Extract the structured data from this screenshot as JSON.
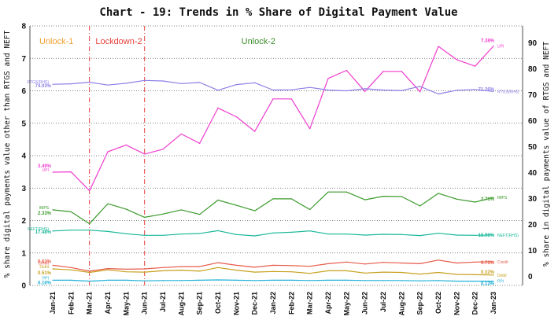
{
  "chart_data": {
    "type": "line",
    "title": "Chart - 19: Trends in % Share of Digital Payment Value",
    "ylabel_left": "% share digital payments value other than RTGS and NEFT",
    "ylabel_right": "% share in digital payments value of RTGS and NEFT",
    "categories": [
      "Jan-21",
      "Feb-21",
      "Mar-21",
      "Apr-21",
      "May-21",
      "Jun-21",
      "Jul-21",
      "Aug-21",
      "Sep-21",
      "Oct-21",
      "Nov-21",
      "Dec-21",
      "Jan-22",
      "Feb-22",
      "Mar-22",
      "Apr-22",
      "May-22",
      "Jun-22",
      "Jul-22",
      "Aug-22",
      "Sep-22",
      "Oct-22",
      "Nov-22",
      "Dec-22",
      "Jan-23"
    ],
    "ylim_left": [
      0,
      8
    ],
    "yticks_left": [
      "0",
      "1",
      "2",
      "3",
      "4",
      "5",
      "6",
      "7",
      "8"
    ],
    "ylim_right": [
      -3.5,
      96.5
    ],
    "yticks_right": [
      "0",
      "10",
      "20",
      "30",
      "40",
      "50",
      "60",
      "70",
      "80",
      "90"
    ],
    "phases": [
      {
        "label": "Unlock-1",
        "color": "#f0a030"
      },
      {
        "label": "Lockdown-2",
        "color": "#e8403c"
      },
      {
        "label": "Unlock-2",
        "color": "#3a8a2a"
      }
    ],
    "phase_boundaries": [
      "Mar-21",
      "Jun-21"
    ],
    "series": [
      {
        "name": "UPI",
        "axis": "left",
        "color": "#f03ccf",
        "values": [
          3.49,
          3.5,
          2.92,
          4.12,
          4.33,
          4.05,
          4.2,
          4.67,
          4.38,
          5.47,
          5.2,
          4.75,
          5.75,
          5.75,
          4.83,
          6.38,
          6.63,
          5.98,
          6.6,
          6.6,
          5.97,
          7.37,
          6.96,
          6.76,
          7.38
        ],
        "start_label": "3.49%",
        "end_label": "7.38%"
      },
      {
        "name": "RTGS(RHS)",
        "axis": "right",
        "color": "#8b7fe6",
        "values": [
          74.03,
          74.2,
          74.8,
          73.7,
          74.4,
          75.5,
          75.3,
          74.3,
          74.7,
          71.7,
          73.9,
          74.6,
          71.8,
          71.9,
          72.8,
          71.8,
          71.5,
          72.3,
          71.8,
          71.6,
          73.2,
          70.3,
          71.7,
          72.0,
          71.26
        ],
        "start_label": "74.03%",
        "end_label": "71.26%"
      },
      {
        "name": "IMPS",
        "axis": "left",
        "color": "#3a9a2a",
        "values": [
          2.33,
          2.27,
          1.9,
          2.52,
          2.35,
          2.1,
          2.2,
          2.33,
          2.19,
          2.63,
          2.47,
          2.3,
          2.67,
          2.67,
          2.34,
          2.88,
          2.88,
          2.64,
          2.75,
          2.74,
          2.45,
          2.84,
          2.66,
          2.57,
          2.71
        ],
        "start_label": "2.33%",
        "end_label": "2.71%"
      },
      {
        "name": "NEFT(RHS)",
        "axis": "right",
        "color": "#18b898",
        "values": [
          17.48,
          17.8,
          17.8,
          17.3,
          16.4,
          15.8,
          15.8,
          16.3,
          16.5,
          17.6,
          16.1,
          15.6,
          16.7,
          17.0,
          17.5,
          16.3,
          16.3,
          15.9,
          16.2,
          16.1,
          15.7,
          16.6,
          15.9,
          15.8,
          15.96
        ],
        "start_label": "17.48%",
        "end_label": "15.96%"
      },
      {
        "name": "Credit",
        "axis": "left",
        "color": "#e85a4a",
        "values": [
          0.62,
          0.55,
          0.44,
          0.52,
          0.5,
          0.51,
          0.55,
          0.58,
          0.58,
          0.7,
          0.62,
          0.56,
          0.62,
          0.61,
          0.59,
          0.67,
          0.72,
          0.66,
          0.71,
          0.69,
          0.67,
          0.78,
          0.69,
          0.72,
          0.73
        ],
        "start_label": "0.62%",
        "end_label": "0.73%"
      },
      {
        "name": "Debit",
        "axis": "left",
        "color": "#c8a020",
        "values": [
          0.51,
          0.48,
          0.4,
          0.48,
          0.42,
          0.41,
          0.45,
          0.47,
          0.44,
          0.55,
          0.47,
          0.41,
          0.43,
          0.42,
          0.37,
          0.45,
          0.45,
          0.38,
          0.41,
          0.4,
          0.35,
          0.4,
          0.34,
          0.33,
          0.32
        ],
        "start_label": "0.51%",
        "end_label": "0.32%"
      },
      {
        "name": "PPI",
        "axis": "left",
        "color": "#20b0d8",
        "values": [
          0.16,
          0.16,
          0.13,
          0.16,
          0.16,
          0.14,
          0.15,
          0.15,
          0.16,
          0.17,
          0.16,
          0.15,
          0.16,
          0.16,
          0.15,
          0.16,
          0.16,
          0.15,
          0.15,
          0.15,
          0.14,
          0.15,
          0.13,
          0.13,
          0.13
        ],
        "start_label": "0.16%",
        "end_label": "0.13%"
      }
    ]
  }
}
